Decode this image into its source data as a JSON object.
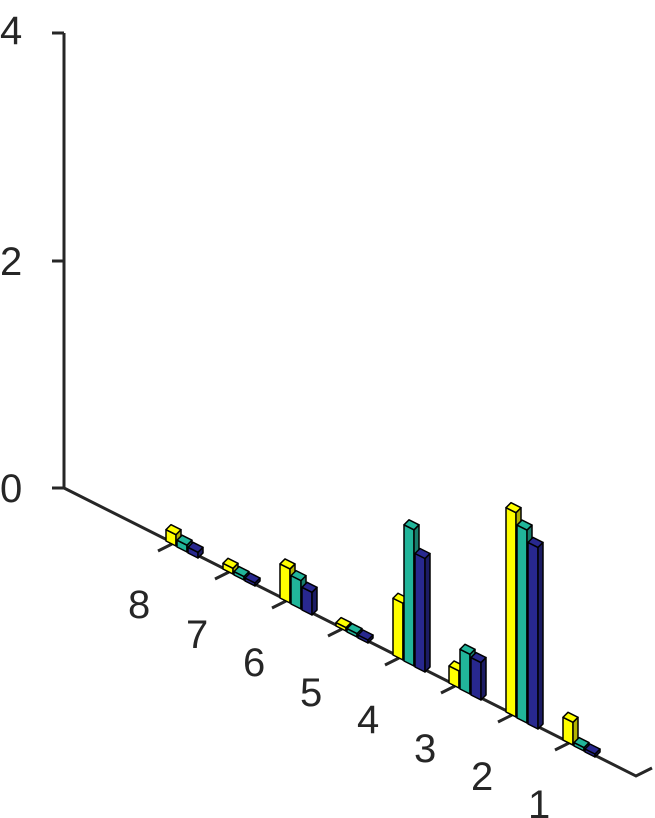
{
  "chart_data": {
    "type": "bar3d",
    "categories": [
      "1",
      "2",
      "3",
      "4",
      "5",
      "6",
      "7",
      "8"
    ],
    "series": [
      {
        "values": [
          0.2,
          1.8,
          0.15,
          0.5,
          0.03,
          0.3,
          0.05,
          0.1
        ],
        "color": "#ffff00"
      },
      {
        "values": [
          0.03,
          1.7,
          0.35,
          1.2,
          0.03,
          0.25,
          0.03,
          0.06
        ],
        "color": "#21b59a"
      },
      {
        "values": [
          0.01,
          1.6,
          0.33,
          1.0,
          0.02,
          0.2,
          0.02,
          0.05
        ],
        "color": "#28288f"
      }
    ],
    "z_ticks": [
      "0",
      "2",
      "4"
    ],
    "zlim": [
      0,
      4
    ],
    "grid": false,
    "legend": "none"
  }
}
